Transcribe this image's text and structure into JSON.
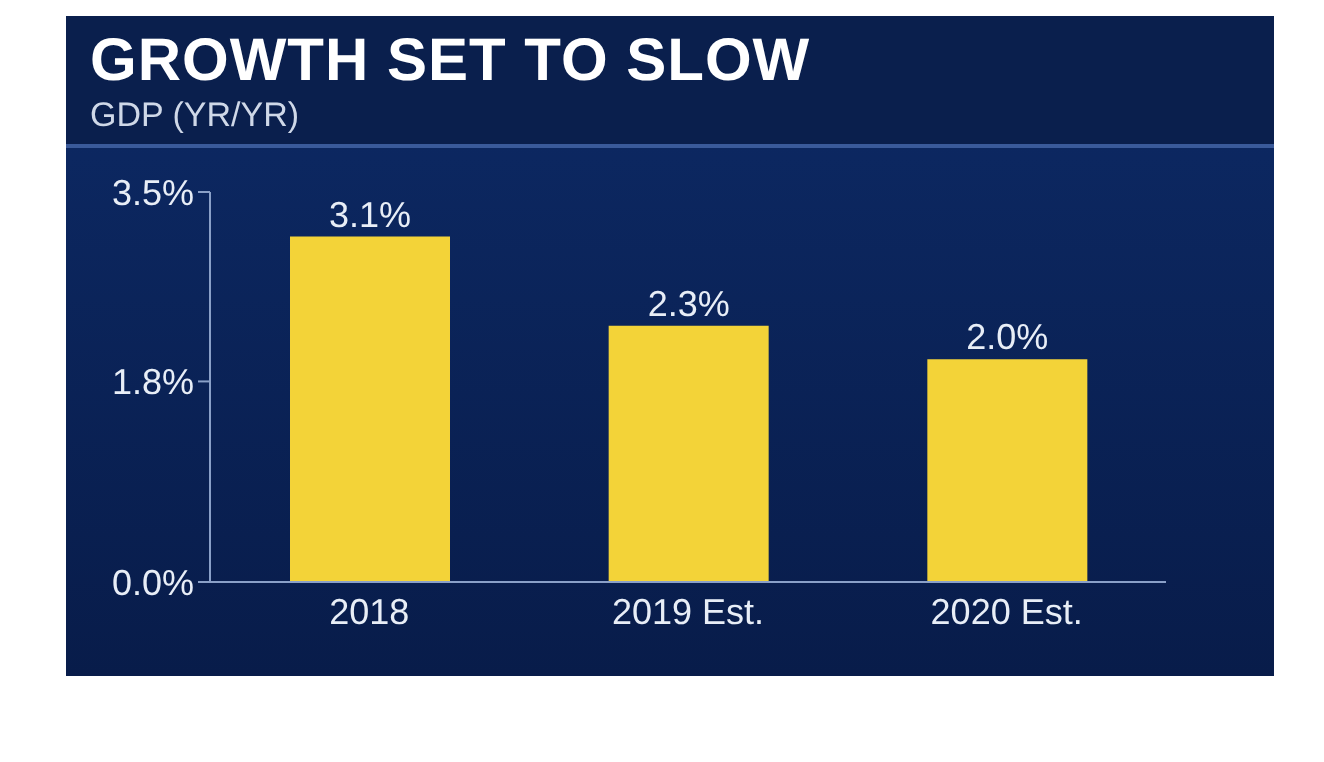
{
  "chart_data": {
    "type": "bar",
    "title": "GROWTH SET TO SLOW",
    "subtitle": "GDP (YR/YR)",
    "categories": [
      "2018",
      "2019 Est.",
      "2020 Est."
    ],
    "values": [
      3.1,
      2.3,
      2.0
    ],
    "color": "#f3d338",
    "value_labels": [
      "3.1%",
      "2.3%",
      "2.0%"
    ],
    "ylim": [
      0,
      3.5
    ],
    "yticks": [
      {
        "value": 0,
        "label": "0.0%"
      },
      {
        "value": 1.8,
        "label": "1.8%"
      },
      {
        "value": 3.5,
        "label": "3.5%"
      }
    ],
    "grid": false,
    "legend": false
  }
}
